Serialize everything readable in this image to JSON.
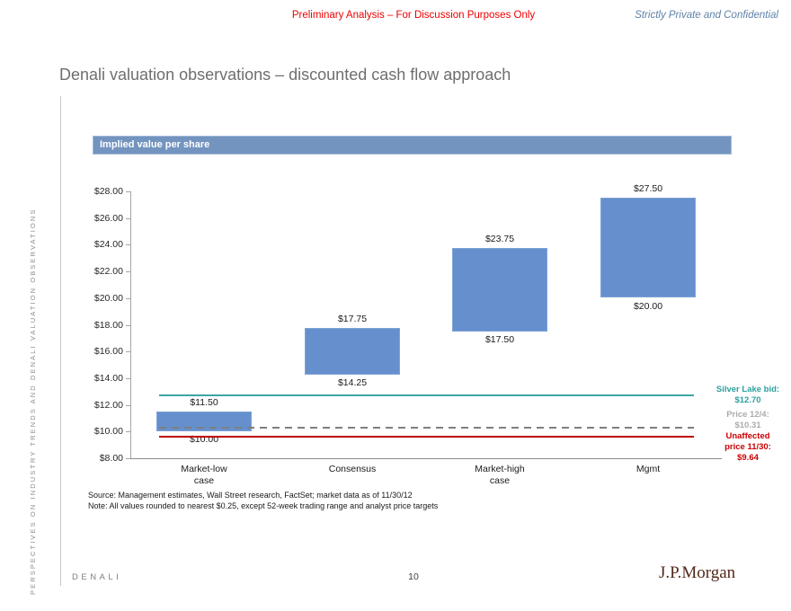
{
  "header": {
    "disclaimer": "Preliminary Analysis – For Discussion Purposes Only",
    "confidential": "Strictly Private and Confidential"
  },
  "title": "Denali valuation observations – discounted cash flow approach",
  "sidebar": {
    "vertical_text": "PERSPECTIVES ON INDUSTRY TRENDS AND DENALI VALUATION OBSERVATIONS"
  },
  "section": {
    "banner_label": "Implied value per share",
    "banner_color": "#7394bf"
  },
  "chart_data": {
    "type": "bar",
    "subtype": "floating-range",
    "title": "Implied value per share",
    "categories": [
      "Market-low case",
      "Consensus",
      "Market-high case",
      "Mgmt"
    ],
    "category_label_lines": [
      [
        "Market-low",
        "case"
      ],
      [
        "Consensus"
      ],
      [
        "Market-high",
        "case"
      ],
      [
        "Mgmt"
      ]
    ],
    "series": [
      {
        "name": "Implied value per share",
        "ranges": [
          {
            "low": 10.0,
            "high": 11.5
          },
          {
            "low": 14.25,
            "high": 17.75
          },
          {
            "low": 17.5,
            "high": 23.75
          },
          {
            "low": 20.0,
            "high": 27.5
          }
        ]
      }
    ],
    "value_labels": [
      {
        "low": "$10.00",
        "high": "$11.50"
      },
      {
        "low": "$14.25",
        "high": "$17.75"
      },
      {
        "low": "$17.50",
        "high": "$23.75"
      },
      {
        "low": "$20.00",
        "high": "$27.50"
      }
    ],
    "ylim": [
      8,
      28
    ],
    "ytick_step": 2,
    "ytick_labels": [
      "$28.00",
      "$26.00",
      "$24.00",
      "$22.00",
      "$20.00",
      "$18.00",
      "$16.00",
      "$14.00",
      "$12.00",
      "$10.00",
      "$8.00"
    ],
    "bar_color": "#6590cd",
    "grid": false,
    "legend": "none",
    "reference_lines": [
      {
        "name": "silver-lake-bid",
        "value": 12.7,
        "style": "solid",
        "line_color": "#3aa6a6",
        "label_color": "#2d9e9e",
        "label_lines": [
          "Silver Lake bid:",
          "$12.70"
        ]
      },
      {
        "name": "price-12-4",
        "value": 10.31,
        "style": "dashed",
        "line_color": "#7f7f7f",
        "label_color": "#ababab",
        "label_lines": [
          "Price 12/4:",
          "$10.31"
        ]
      },
      {
        "name": "unaffected-price-11-30",
        "value": 9.64,
        "style": "solid",
        "line_color": "#be0000",
        "label_color": "#cc0000",
        "label_lines": [
          "Unaffected",
          "price 11/30:",
          "$9.64"
        ]
      }
    ]
  },
  "footnotes": {
    "source": "Source: Management estimates, Wall Street research, FactSet; market data as of 11/30/12",
    "note": "Note: All values rounded to nearest $0.25, except 52-week trading range and analyst price targets"
  },
  "footer": {
    "left": "DENALI",
    "page_number": "10",
    "brand": "J.P.Morgan"
  }
}
